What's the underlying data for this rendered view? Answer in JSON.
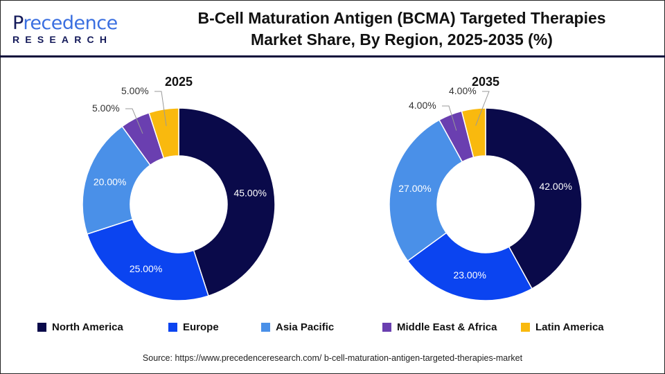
{
  "logo": {
    "line1_a": "P",
    "line1_b": "recedence",
    "line2": "RESEARCH"
  },
  "title_line1": "B-Cell Maturation Antigen (BCMA) Targeted Therapies",
  "title_line2": "Market Share, By Region, 2025-2035 (%)",
  "chart_data": [
    {
      "type": "pie",
      "style": "donut",
      "title": "2025",
      "categories": [
        "North America",
        "Europe",
        "Asia Pacific",
        "Middle East & Africa",
        "Latin America"
      ],
      "values": [
        45,
        25,
        20,
        5,
        5
      ],
      "labels": [
        "45.00%",
        "25.00%",
        "20.00%",
        "5.00%",
        "5.00%"
      ]
    },
    {
      "type": "pie",
      "style": "donut",
      "title": "2035",
      "categories": [
        "North America",
        "Europe",
        "Asia Pacific",
        "Middle East & Africa",
        "Latin America"
      ],
      "values": [
        42,
        23,
        27,
        4,
        4
      ],
      "labels": [
        "42.00%",
        "23.00%",
        "27.00%",
        "4.00%",
        "4.00%"
      ]
    }
  ],
  "legend": {
    "placement": "bottom",
    "items": [
      {
        "label": "North America",
        "color": "#0a0a4a"
      },
      {
        "label": "Europe",
        "color": "#0b44f0"
      },
      {
        "label": "Asia Pacific",
        "color": "#4a90e8"
      },
      {
        "label": "Middle East & Africa",
        "color": "#6a3fb0"
      },
      {
        "label": "Latin America",
        "color": "#f9b90e"
      }
    ]
  },
  "source": "Source: https://www.precedenceresearch.com/ b-cell-maturation-antigen-targeted-therapies-market"
}
